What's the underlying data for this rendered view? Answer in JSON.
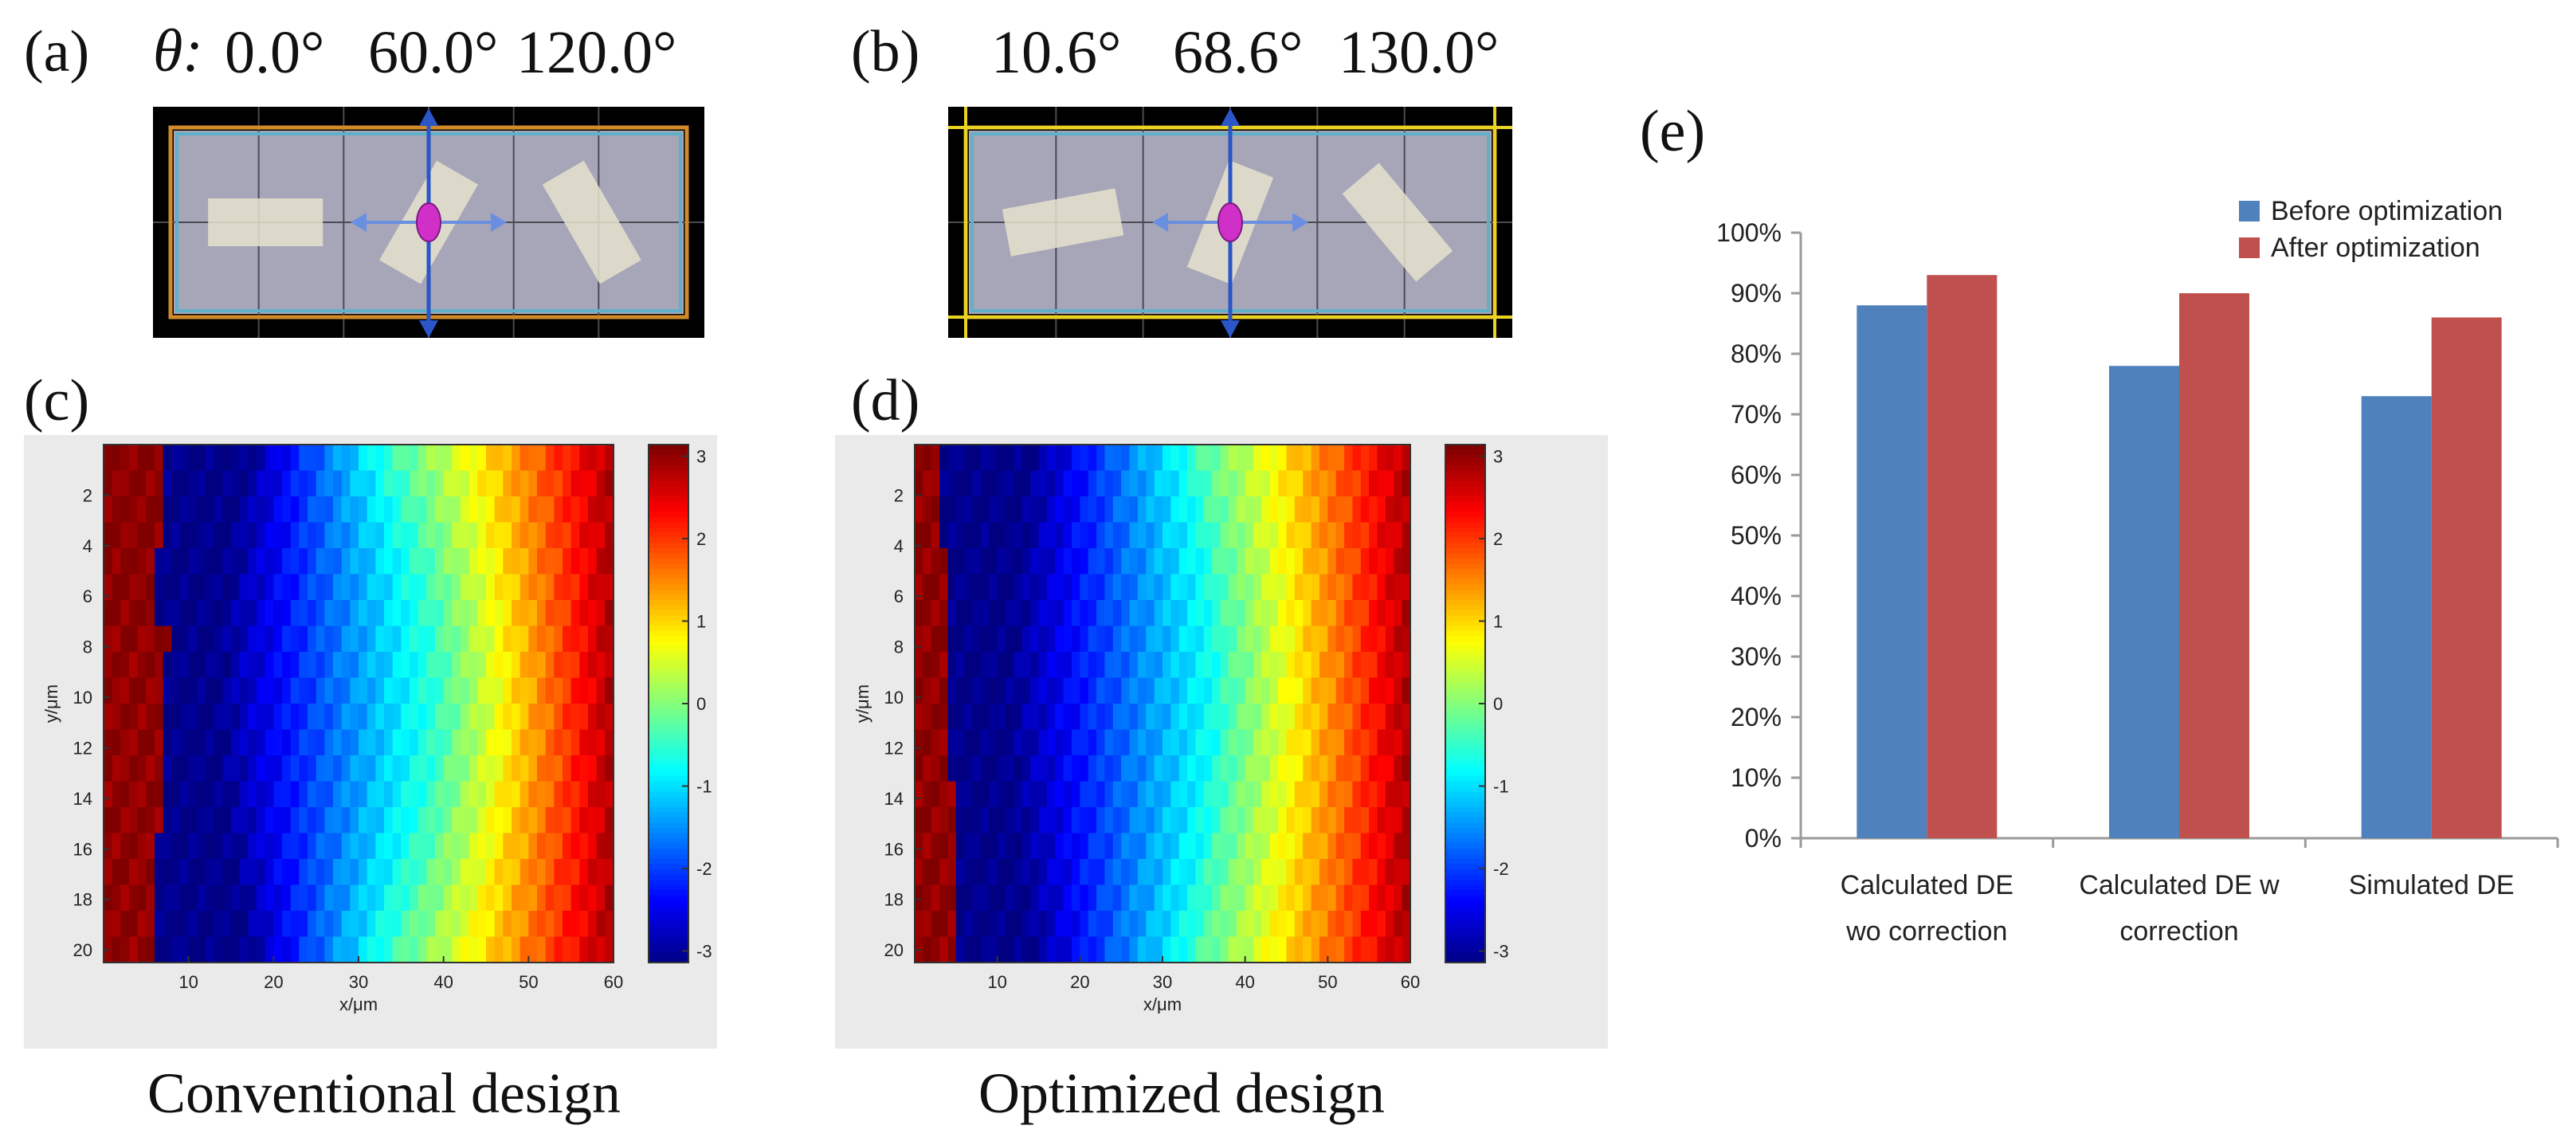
{
  "panel_a": {
    "label": "(a)",
    "theta_symbol": "θ:",
    "angles": [
      "0.0°",
      "60.0°",
      "120.0°"
    ],
    "rotations_deg": [
      0,
      60,
      120
    ],
    "caption": "Conventional design"
  },
  "panel_b": {
    "label": "(b)",
    "angles": [
      "10.6°",
      "68.6°",
      "130.0°"
    ],
    "rotations_deg": [
      10.6,
      68.6,
      130.0
    ],
    "caption": "Optimized design"
  },
  "panel_c": {
    "label": "(c)"
  },
  "panel_d": {
    "label": "(d)"
  },
  "phase_maps": {
    "xlabel": "x/μm",
    "ylabel": "y/μm",
    "x_ticks": [
      "10",
      "20",
      "30",
      "40",
      "50",
      "60"
    ],
    "y_ticks": [
      "2",
      "4",
      "6",
      "8",
      "10",
      "12",
      "14",
      "16",
      "18",
      "20"
    ],
    "colorbar_ticks": [
      "3",
      "2",
      "1",
      "0",
      "-1",
      "-2",
      "-3"
    ]
  },
  "panel_e": {
    "label": "(e)"
  },
  "colors": {
    "before": "#4f81bd",
    "after": "#c0504d",
    "bar_panel_fill": "#a7a6b8",
    "axis_grey": "#9a9a9a"
  },
  "chart_data": {
    "type": "bar",
    "title": "",
    "categories": [
      [
        "Calculated DE",
        "wo correction"
      ],
      [
        "Calculated DE w",
        "correction"
      ],
      [
        "Simulated DE"
      ]
    ],
    "series": [
      {
        "name": "Before optimization",
        "values": [
          88,
          78,
          73
        ]
      },
      {
        "name": "After optimization",
        "values": [
          93,
          90,
          86
        ]
      }
    ],
    "y_ticks": [
      "0%",
      "10%",
      "20%",
      "30%",
      "40%",
      "50%",
      "60%",
      "70%",
      "80%",
      "90%",
      "100%"
    ],
    "ylim": [
      0,
      100
    ],
    "xlabel": "",
    "ylabel": "",
    "grid": false,
    "legend": "top-right"
  }
}
